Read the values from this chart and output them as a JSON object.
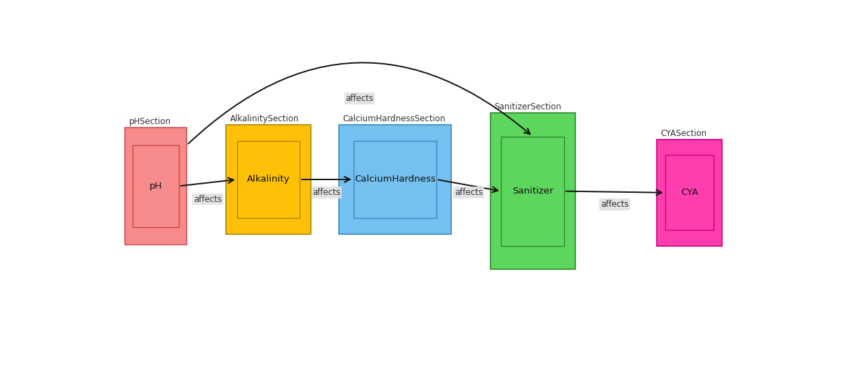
{
  "background_color": "#ffffff",
  "sections": [
    {
      "id": "pHSection",
      "label": "pHSection",
      "inner_label": "pH",
      "ox": 0.03,
      "oy": 0.32,
      "ow": 0.095,
      "oh": 0.4,
      "outer_color": "#f78b8b",
      "outer_edge": "#d05050",
      "inner_color": "#f78b8b",
      "inner_edge": "#cc4444"
    },
    {
      "id": "AlkalinitySection",
      "label": "AlkalinitySection",
      "inner_label": "Alkalinity",
      "ox": 0.185,
      "oy": 0.355,
      "ow": 0.13,
      "oh": 0.375,
      "outer_color": "#ffc107",
      "outer_edge": "#b38600",
      "inner_color": "#ffc107",
      "inner_edge": "#b38600"
    },
    {
      "id": "CalciumHardnessSection",
      "label": "CalciumHardnessSection",
      "inner_label": "CalciumHardness",
      "ox": 0.358,
      "oy": 0.355,
      "ow": 0.172,
      "oh": 0.375,
      "outer_color": "#74c0f0",
      "outer_edge": "#3a8bbf",
      "inner_color": "#74c0f0",
      "inner_edge": "#3a8bbf"
    },
    {
      "id": "SanitizerSection",
      "label": "SanitizerSection",
      "inner_label": "Sanitizer",
      "ox": 0.59,
      "oy": 0.235,
      "ow": 0.13,
      "oh": 0.535,
      "outer_color": "#5cd65c",
      "outer_edge": "#2e8b2e",
      "inner_color": "#5cd65c",
      "inner_edge": "#2e8b2e"
    },
    {
      "id": "CYASection",
      "label": "CYASection",
      "inner_label": "CYA",
      "ox": 0.845,
      "oy": 0.315,
      "ow": 0.1,
      "oh": 0.365,
      "outer_color": "#ff3daf",
      "outer_edge": "#cc0080",
      "inner_color": "#ff3daf",
      "inner_edge": "#cc0080"
    }
  ],
  "font_size_label": 8.5,
  "font_size_inner": 9.5,
  "arrow_color": "#111111",
  "label_bg": "#e0e0e0",
  "affects_fontsize": 8.5
}
